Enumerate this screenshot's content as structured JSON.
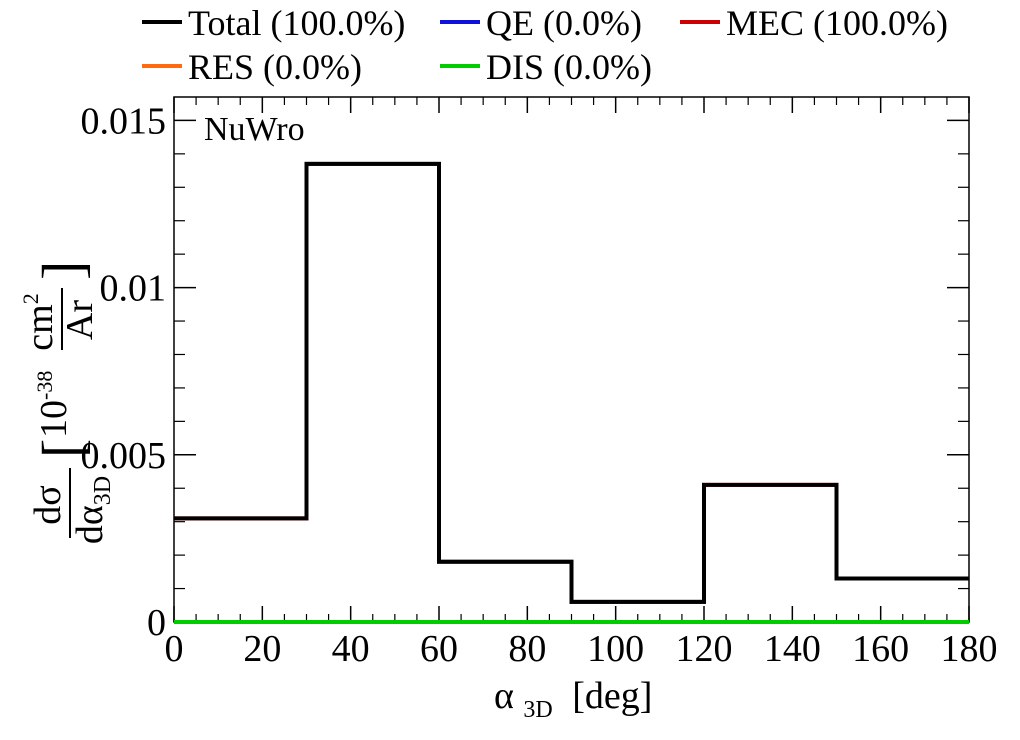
{
  "chart_data": {
    "type": "line",
    "step": true,
    "annotation": "NuWro",
    "xlabel": {
      "symbol": "α",
      "subscript": "3D",
      "unit": "[deg]"
    },
    "ylabel": {
      "num_d": "d",
      "num_sym": "σ",
      "den_d": "d",
      "den_sym": "α",
      "den_sub": "3D",
      "lbracket": "[",
      "rbracket": "]",
      "scale_base": "10",
      "scale_exp": "-38",
      "unit_num": "cm",
      "unit_num_exp": "2",
      "unit_den": "Ar"
    },
    "xlim": [
      0,
      180
    ],
    "ylim": [
      0,
      0.0157
    ],
    "x_ticks": [
      0,
      20,
      40,
      60,
      80,
      100,
      120,
      140,
      160,
      180
    ],
    "x_tick_labels": [
      "0",
      "20",
      "40",
      "60",
      "80",
      "100",
      "120",
      "140",
      "160",
      "180"
    ],
    "y_ticks": [
      0,
      0.005,
      0.01,
      0.015
    ],
    "y_tick_labels": [
      "0",
      "0.005",
      "0.01",
      "0.015"
    ],
    "bin_edges": [
      0,
      30,
      60,
      90,
      120,
      150,
      180
    ],
    "series": [
      {
        "name": "Total (100.0%)",
        "color": "#000000",
        "values": [
          0.0031,
          0.0137,
          0.0018,
          0.0006,
          0.0041,
          0.0013
        ]
      },
      {
        "name": "QE (0.0%)",
        "color": "#1010dd",
        "values": [
          0,
          0,
          0,
          0,
          0,
          0
        ]
      },
      {
        "name": "MEC (100.0%)",
        "color": "#cc0000",
        "values": [
          0.0031,
          0.0137,
          0.0018,
          0.0006,
          0.0041,
          0.0013
        ]
      },
      {
        "name": "RES (0.0%)",
        "color": "#ff6a10",
        "values": [
          0,
          0,
          0,
          0,
          0,
          0
        ]
      },
      {
        "name": "DIS (0.0%)",
        "color": "#00cc00",
        "values": [
          0,
          0,
          0,
          0,
          0,
          0
        ]
      }
    ],
    "grid": false,
    "legend_position": "top"
  }
}
